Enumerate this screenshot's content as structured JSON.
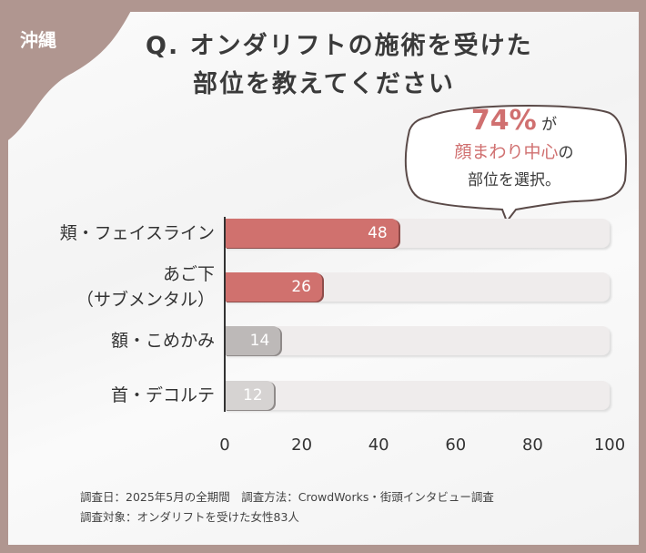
{
  "region_tag": "沖縄",
  "title_line1": "Q. オンダリフトの施術を受けた",
  "title_line2": "部位を教えてください",
  "callout": {
    "percent": "74%",
    "ga": "が",
    "highlight": "顔まわり中心",
    "no": "の",
    "line3": "部位を選択。"
  },
  "chart_data": {
    "type": "bar",
    "orientation": "horizontal",
    "categories": [
      "頬・フェイスライン",
      "あご下（サブメンタル）",
      "額・こめかみ",
      "首・デコルテ"
    ],
    "category_lines": [
      [
        "頬・フェイスライン"
      ],
      [
        "あご下",
        "（サブメンタル）"
      ],
      [
        "額・こめかみ"
      ],
      [
        "首・デコルテ"
      ]
    ],
    "values": [
      48,
      26,
      14,
      12
    ],
    "value_labels": [
      "48",
      "26",
      "14",
      "12"
    ],
    "colors": [
      "#d0716e",
      "#d0716e",
      "#bdb9b8",
      "#d6d3d2"
    ],
    "xlim": [
      0,
      100
    ],
    "xticks": [
      "0",
      "20",
      "40",
      "60",
      "80",
      "100"
    ],
    "grid": false
  },
  "notes": [
    "調査日：2025年5月の全期間　調査方法：CrowdWorks・街頭インタビュー調査",
    "調査対象：オンダリフトを受けた女性83人"
  ]
}
